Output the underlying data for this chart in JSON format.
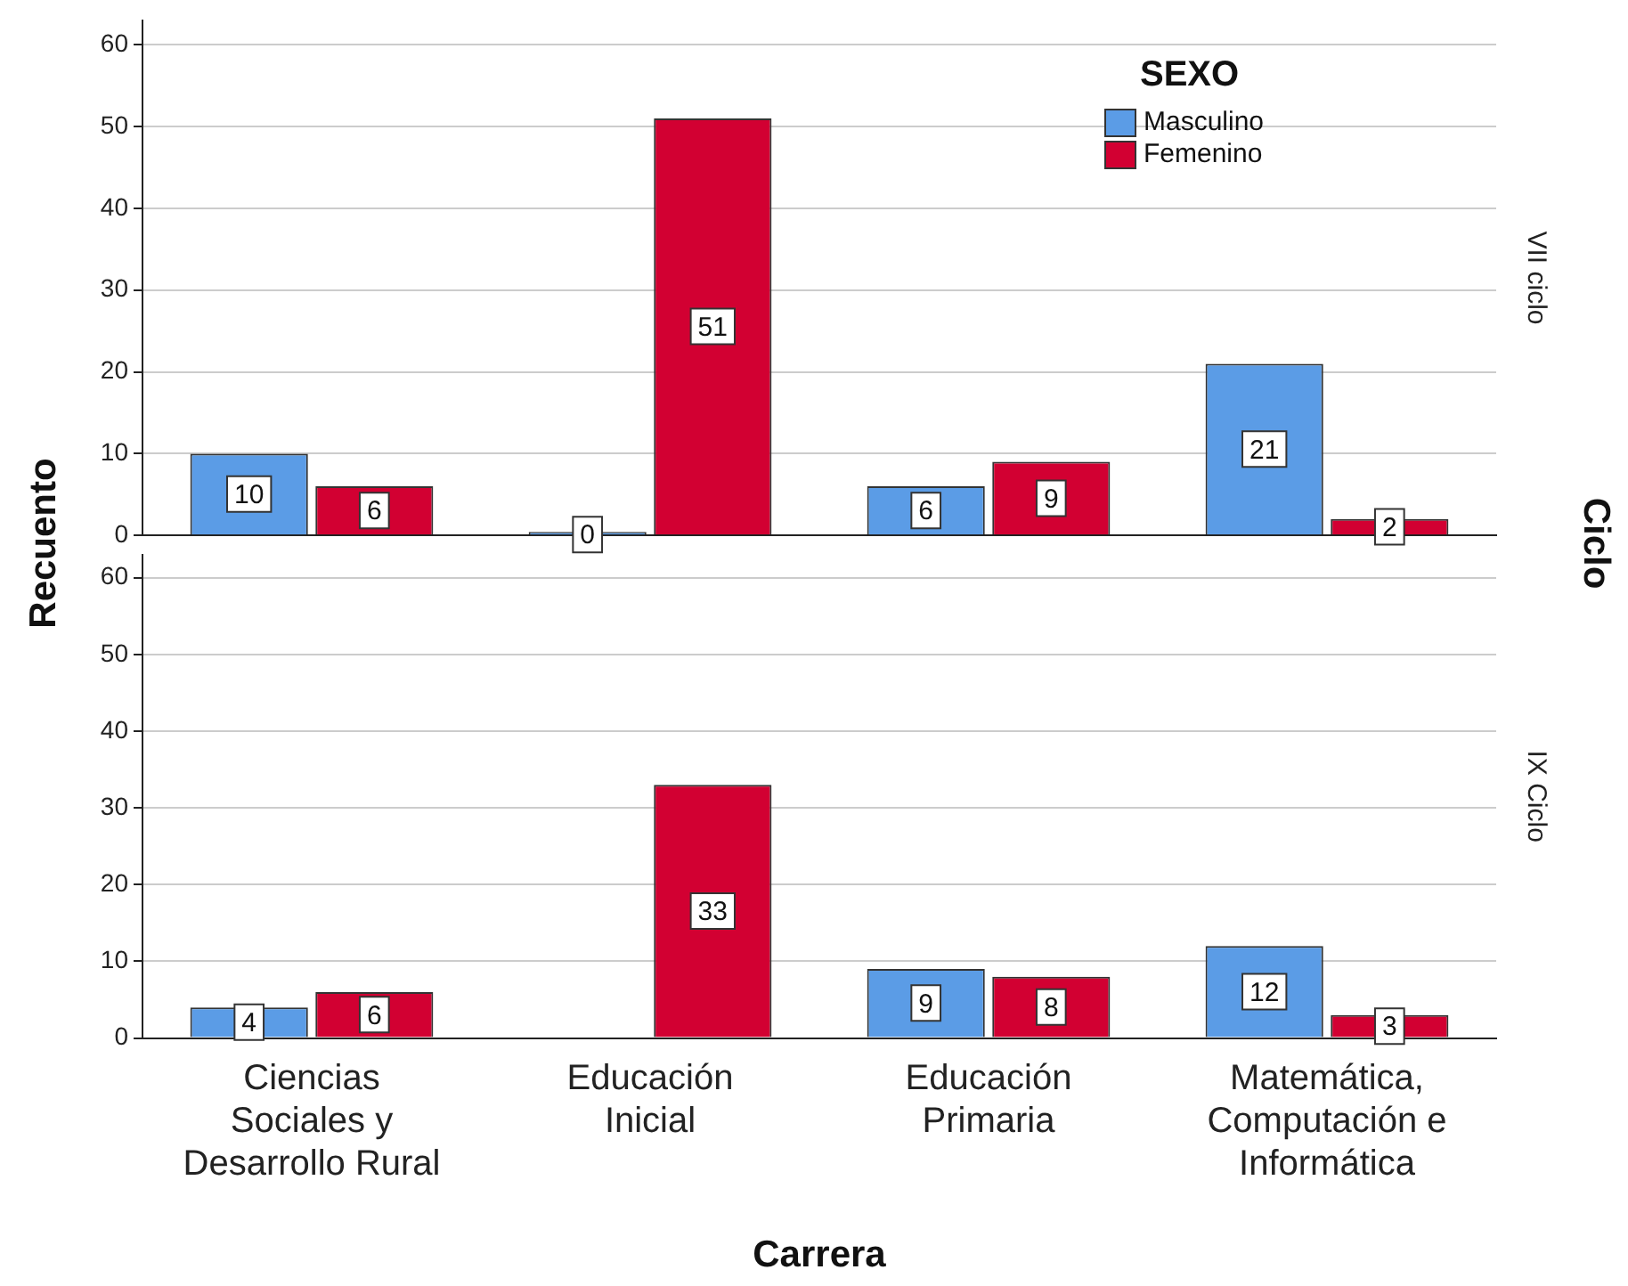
{
  "chart_data": [
    {
      "type": "bar",
      "categories": [
        null,
        null,
        null,
        null
      ],
      "series": [
        {
          "name": "Masculino",
          "color": "#5b9ce6",
          "values": [
            10,
            0,
            6,
            21
          ]
        },
        {
          "name": "Femenino",
          "color": "#d20032",
          "values": [
            6,
            51,
            9,
            2
          ]
        }
      ],
      "ylim": [
        0,
        63
      ],
      "yticks": [
        0,
        10,
        20,
        30,
        40,
        50,
        60
      ],
      "grid": "y",
      "legend": "top right",
      "legend_title": "SEXO",
      "data_labels": true,
      "tick_labels": "y",
      "ylabel": "Recuento",
      "y2label": "VII ciclo",
      "annotations": [
        "Ciclo"
      ]
    },
    {
      "type": "bar",
      "categories": [
        "Ciencias Sociales y Desarrollo Rural",
        "Educación Inicial",
        "Educación Primaria",
        "Matemática, Computación e Informática"
      ],
      "series": [
        {
          "color": "#5b9ce6",
          "values": [
            4,
            null,
            9,
            12
          ]
        },
        {
          "color": "#d20032",
          "values": [
            6,
            33,
            8,
            3
          ]
        }
      ],
      "ylim": [
        0,
        63
      ],
      "yticks": [
        0,
        10,
        20,
        30,
        40,
        50,
        60
      ],
      "grid": "y",
      "data_labels": true,
      "xlabel": "Carrera",
      "y2label": "IX Ciclo"
    }
  ]
}
